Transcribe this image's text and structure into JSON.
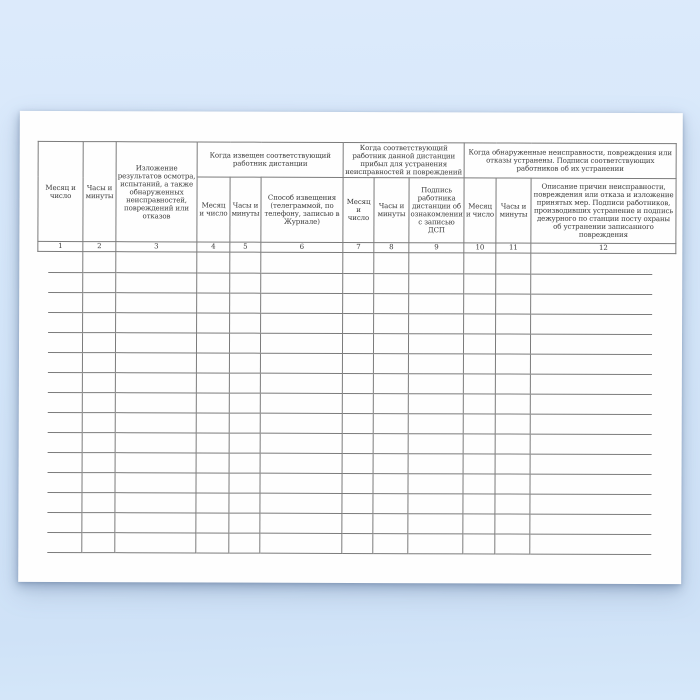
{
  "colors": {
    "background_top": "#dceafb",
    "background_mid": "#d5e7fa",
    "background_bottom": "#cfe2f7",
    "background_edge": "#d6e8fa",
    "paper": "#fefefe",
    "grid_line": "#7b7b7b",
    "text": "#3a3a3a"
  },
  "table": {
    "group_headers": [
      {
        "label": "Когда извещен соответствующий работник дистанции"
      },
      {
        "label": "Когда соответствующий работник данной дистанции прибыл для устранения неисправностей и повреждений"
      },
      {
        "label": "Когда обнаруженные неисправности, повреждения или отказы устранены. Подписи соответствующих работников об их устранении"
      }
    ],
    "columns": [
      {
        "number": "1",
        "label": "Месяц и число"
      },
      {
        "number": "2",
        "label": "Часы и минуты"
      },
      {
        "number": "3",
        "label": "Изложение результатов осмотра, испытаний, а также обнаруженных неисправностей, повреждений или отказов"
      },
      {
        "number": "4",
        "label": "Месяц и число"
      },
      {
        "number": "5",
        "label": "Часы и минуты"
      },
      {
        "number": "6",
        "label": "Способ извещения (телеграммой, по телефону, записью в Журнале)"
      },
      {
        "number": "7",
        "label": "Месяц и число"
      },
      {
        "number": "8",
        "label": "Часы и минуты"
      },
      {
        "number": "9",
        "label": "Подпись работника дистанции об ознакомлении с записью ДСП"
      },
      {
        "number": "10",
        "label": "Месяц и число"
      },
      {
        "number": "11",
        "label": "Часы и минуты"
      },
      {
        "number": "12",
        "label": "Описание причин неисправности, повреждения или отказа и изложение принятых мер. Подписи работников, производивших устранение и подпись дежурного по станции посту охраны об устранении записанного повреждения"
      }
    ],
    "empty_row_count": 15
  }
}
